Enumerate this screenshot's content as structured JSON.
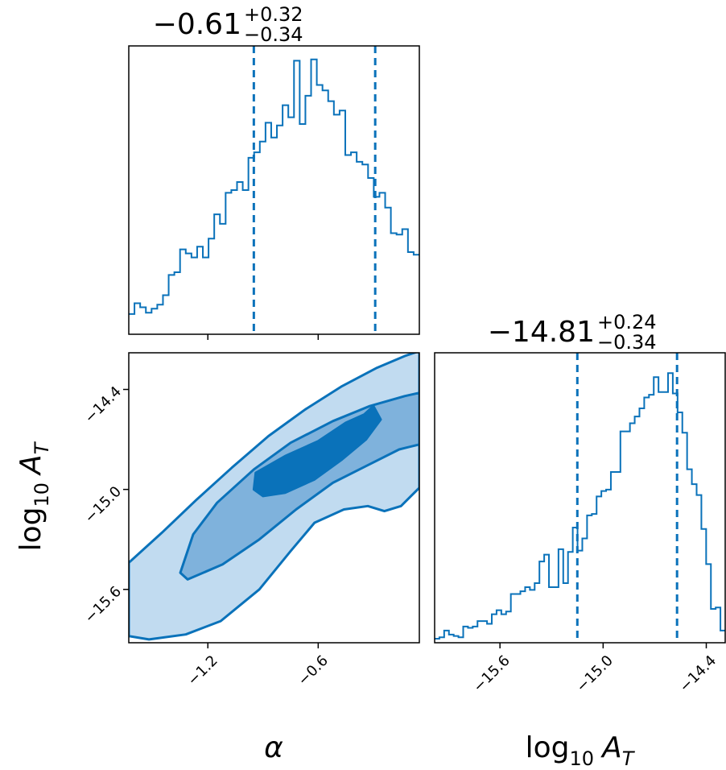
{
  "colors": {
    "line": "#0a72ba",
    "fill_outer": "#c1dbf0",
    "fill_mid": "#7fb2dc",
    "fill_inner": "#0a72ba",
    "axes": "#000000"
  },
  "chart_data": [
    {
      "type": "histogram",
      "panel": "alpha marginal",
      "title": {
        "value": "−0.61",
        "upper": "+0.32",
        "lower": "−0.34"
      },
      "median": -0.61,
      "quantiles": [
        -0.95,
        -0.29
      ],
      "xlim": [
        -1.63,
        -0.05
      ],
      "x_ticks": [
        -1.2,
        -0.6
      ],
      "x_tick_labels": [],
      "counts": [
        1.5,
        2.3,
        2.0,
        1.6,
        1.9,
        2.2,
        2.9,
        4.4,
        4.6,
        6.3,
        6.0,
        5.7,
        6.5,
        5.7,
        7.1,
        8.9,
        8.2,
        10.5,
        10.7,
        11.3,
        10.7,
        13.1,
        13.5,
        14.3,
        15.7,
        14.6,
        15.5,
        17.0,
        16.1,
        20.3,
        15.6,
        17.7,
        20.4,
        18.5,
        18.1,
        17.3,
        16.3,
        16.6,
        13.3,
        13.5,
        12.8,
        12.6,
        11.6,
        10.2,
        10.5,
        9.4,
        7.5,
        7.4,
        7.8,
        6.1,
        5.9
      ]
    },
    {
      "type": "contour",
      "panel": "joint alpha vs log10 A_T",
      "xlim": [
        -1.63,
        -0.05
      ],
      "ylim": [
        -15.92,
        -14.18
      ],
      "x_ticks": [
        -1.2,
        -0.6
      ],
      "x_tick_labels": [
        "−1.2",
        "−0.6"
      ],
      "y_ticks": [
        -14.4,
        -15.0,
        -15.6
      ],
      "y_tick_labels": [
        "−14.4",
        "−15.0",
        "−15.6"
      ],
      "xlabel": "α",
      "ylabel": "log10 A_T",
      "levels": [
        {
          "name": "outer",
          "points": [
            [
              -1.63,
              -15.44
            ],
            [
              -1.45,
              -15.26
            ],
            [
              -1.26,
              -15.06
            ],
            [
              -1.07,
              -14.87
            ],
            [
              -0.87,
              -14.68
            ],
            [
              -0.67,
              -14.52
            ],
            [
              -0.47,
              -14.38
            ],
            [
              -0.28,
              -14.27
            ],
            [
              -0.13,
              -14.2
            ],
            [
              -0.05,
              -14.17
            ],
            [
              -0.05,
              -14.99
            ],
            [
              -0.15,
              -15.1
            ],
            [
              -0.24,
              -15.13
            ],
            [
              -0.33,
              -15.1
            ],
            [
              -0.46,
              -15.12
            ],
            [
              -0.62,
              -15.2
            ],
            [
              -0.75,
              -15.37
            ],
            [
              -0.92,
              -15.6
            ],
            [
              -1.13,
              -15.79
            ],
            [
              -1.32,
              -15.87
            ],
            [
              -1.52,
              -15.9
            ],
            [
              -1.63,
              -15.88
            ]
          ]
        },
        {
          "name": "middle",
          "points": [
            [
              -1.35,
              -15.5
            ],
            [
              -1.28,
              -15.27
            ],
            [
              -1.15,
              -15.08
            ],
            [
              -0.95,
              -14.88
            ],
            [
              -0.75,
              -14.72
            ],
            [
              -0.52,
              -14.59
            ],
            [
              -0.32,
              -14.5
            ],
            [
              -0.13,
              -14.44
            ],
            [
              -0.05,
              -14.42
            ],
            [
              -0.05,
              -14.73
            ],
            [
              -0.16,
              -14.76
            ],
            [
              -0.34,
              -14.86
            ],
            [
              -0.52,
              -14.96
            ],
            [
              -0.72,
              -15.12
            ],
            [
              -0.92,
              -15.3
            ],
            [
              -1.12,
              -15.45
            ],
            [
              -1.31,
              -15.54
            ]
          ]
        },
        {
          "name": "inner",
          "points": [
            [
              -0.95,
              -15.0
            ],
            [
              -0.94,
              -14.9
            ],
            [
              -0.78,
              -14.8
            ],
            [
              -0.6,
              -14.71
            ],
            [
              -0.45,
              -14.6
            ],
            [
              -0.35,
              -14.55
            ],
            [
              -0.3,
              -14.5
            ],
            [
              -0.26,
              -14.58
            ],
            [
              -0.34,
              -14.7
            ],
            [
              -0.47,
              -14.82
            ],
            [
              -0.62,
              -14.94
            ],
            [
              -0.78,
              -15.02
            ],
            [
              -0.9,
              -15.04
            ]
          ]
        }
      ]
    },
    {
      "type": "histogram",
      "panel": "log10 A_T marginal",
      "title": {
        "value": "−14.81",
        "upper": "+0.24",
        "lower": "−0.34"
      },
      "median": -14.81,
      "quantiles": [
        -15.15,
        -14.57
      ],
      "xlim": [
        -15.98,
        -14.29
      ],
      "x_ticks": [
        -15.6,
        -15.0,
        -14.4
      ],
      "x_tick_labels": [
        "−15.6",
        "−15.0",
        "−14.4"
      ],
      "xlabel": "log10 A_T",
      "counts": [
        0.3,
        0.4,
        0.9,
        0.6,
        0.5,
        0.4,
        1.2,
        1.1,
        1.2,
        1.6,
        1.6,
        1.4,
        2.1,
        2.4,
        2.1,
        2.3,
        3.6,
        3.6,
        3.8,
        4.1,
        3.9,
        4.4,
        6.0,
        6.5,
        4.1,
        4.1,
        6.9,
        4.4,
        6.7,
        8.5,
        6.8,
        7.7,
        9.4,
        9.5,
        10.8,
        11.2,
        11.3,
        12.6,
        12.6,
        15.6,
        15.6,
        16.2,
        16.7,
        17.3,
        18.1,
        18.3,
        19.6,
        18.5,
        18.5,
        19.9,
        18.4,
        17.0,
        15.5,
        12.8,
        11.7,
        10.9,
        8.4,
        5.8,
        2.5,
        2.6,
        0.9
      ]
    }
  ]
}
